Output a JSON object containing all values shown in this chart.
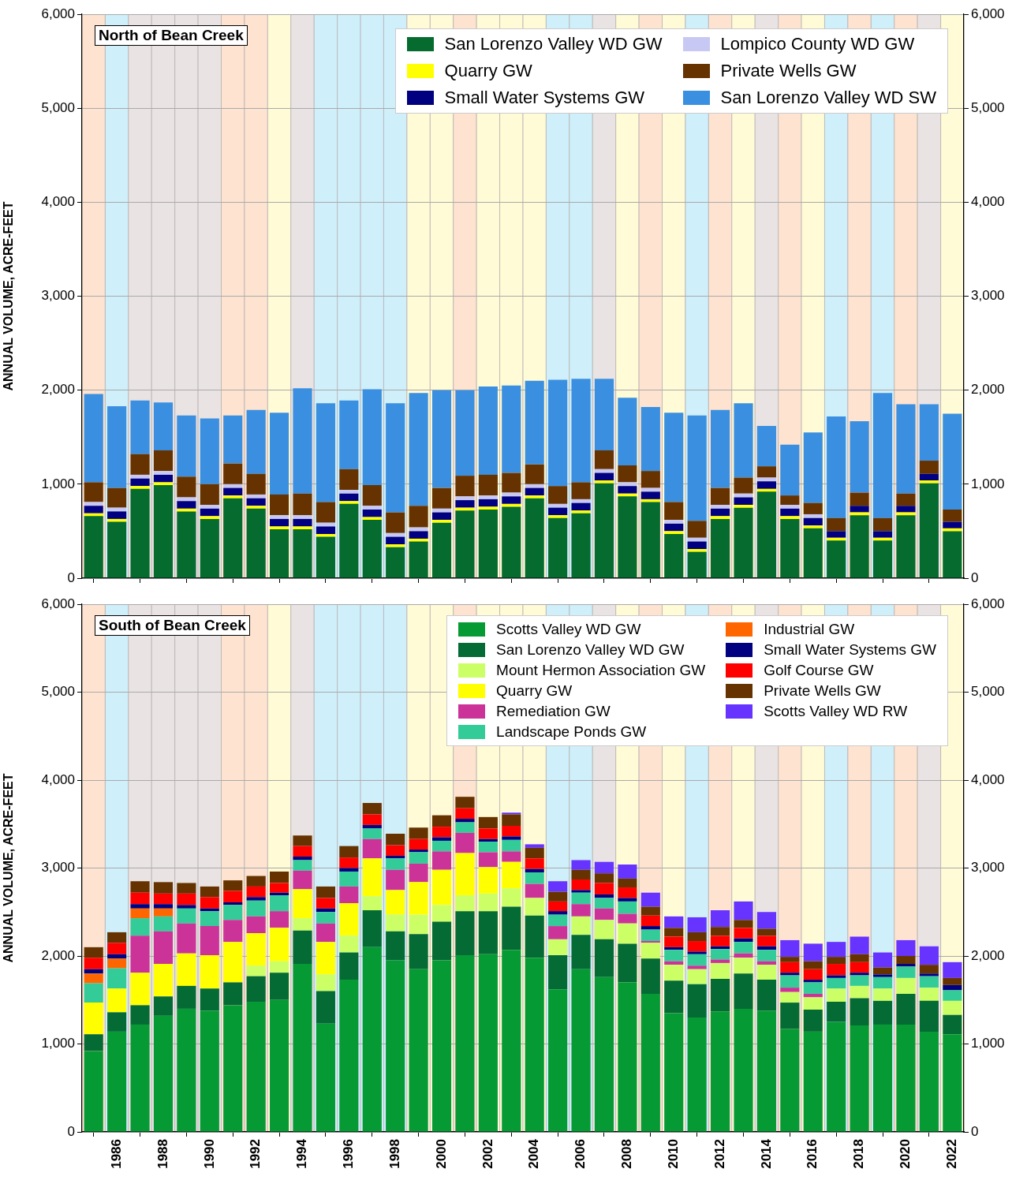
{
  "chart_data": [
    {
      "type": "bar",
      "title": "North of Bean Creek",
      "ylabel": "ANNUAL VOLUME, ACRE-FEET",
      "stacked": true,
      "grid": "y",
      "legend": "top right",
      "tick_labels": "y",
      "x": [
        1985,
        1986,
        1987,
        1988,
        1989,
        1990,
        1991,
        1992,
        1993,
        1994,
        1995,
        1996,
        1997,
        1998,
        1999,
        2000,
        2001,
        2002,
        2003,
        2004,
        2005,
        2006,
        2007,
        2008,
        2009,
        2010,
        2011,
        2012,
        2013,
        2014,
        2015,
        2016,
        2017,
        2018,
        2019,
        2020,
        2021,
        2022
      ],
      "xlim": [
        1984.5,
        2022.5
      ],
      "xticks": [
        1986,
        1988,
        1990,
        1992,
        1994,
        1996,
        1998,
        2000,
        2002,
        2004,
        2006,
        2008,
        2010,
        2012,
        2014,
        2016,
        2018,
        2020,
        2022
      ],
      "ylim": [
        0,
        6000
      ],
      "yticks": [
        0,
        {
          "value": 1000,
          "label": "1,000"
        },
        {
          "value": 2000,
          "label": "2,000"
        },
        {
          "value": 3000,
          "label": "3,000"
        },
        {
          "value": 4000,
          "label": "4,000"
        },
        {
          "value": 5000,
          "label": "5,000"
        },
        {
          "value": 6000,
          "label": "6,000"
        }
      ],
      "y2lim": [
        0,
        6000
      ],
      "y2ticks": [
        0,
        {
          "value": 1000,
          "label": "1,000"
        },
        {
          "value": 2000,
          "label": "2,000"
        },
        {
          "value": 3000,
          "label": "3,000"
        },
        {
          "value": 4000,
          "label": "4,000"
        },
        {
          "value": 5000,
          "label": "5,000"
        },
        {
          "value": 6000,
          "label": "6,000"
        }
      ],
      "series": [
        {
          "name": "San Lorenzo Valley WD GW",
          "color": "#056b2f",
          "values": [
            660,
            600,
            950,
            990,
            710,
            630,
            850,
            740,
            520,
            520,
            440,
            790,
            620,
            330,
            390,
            590,
            720,
            730,
            760,
            850,
            640,
            690,
            1010,
            870,
            810,
            470,
            280,
            630,
            750,
            920,
            630,
            530,
            400,
            670,
            400,
            670,
            1010,
            500
          ]
        },
        {
          "name": "Quarry GW",
          "color": "#ffff00",
          "values": [
            30,
            30,
            30,
            30,
            30,
            30,
            30,
            30,
            30,
            30,
            30,
            30,
            30,
            30,
            30,
            30,
            30,
            30,
            30,
            30,
            30,
            30,
            30,
            30,
            30,
            30,
            30,
            30,
            30,
            30,
            30,
            30,
            30,
            30,
            30,
            30,
            30,
            30
          ]
        },
        {
          "name": "Small Water Systems GW",
          "color": "#000080",
          "values": [
            80,
            80,
            80,
            80,
            80,
            80,
            80,
            80,
            80,
            80,
            80,
            80,
            80,
            80,
            80,
            80,
            80,
            80,
            80,
            80,
            80,
            80,
            80,
            80,
            80,
            80,
            80,
            80,
            80,
            80,
            80,
            80,
            70,
            70,
            70,
            70,
            70,
            70
          ]
        },
        {
          "name": "Lompico County WD GW",
          "color": "#c8c8f5",
          "values": [
            40,
            40,
            40,
            40,
            40,
            40,
            40,
            40,
            40,
            40,
            40,
            40,
            40,
            40,
            40,
            40,
            40,
            40,
            40,
            40,
            40,
            40,
            40,
            40,
            40,
            40,
            40,
            40,
            40,
            40,
            40,
            40,
            null,
            null,
            null,
            null,
            null,
            null
          ]
        },
        {
          "name": "Private Wells GW",
          "color": "#663300",
          "values": [
            210,
            210,
            220,
            220,
            220,
            220,
            220,
            220,
            220,
            230,
            220,
            220,
            220,
            220,
            230,
            220,
            220,
            220,
            210,
            210,
            190,
            180,
            200,
            180,
            180,
            190,
            180,
            180,
            170,
            120,
            100,
            120,
            140,
            140,
            140,
            130,
            140,
            130
          ]
        },
        {
          "name": "San Lorenzo Valley WD SW",
          "color": "#3a8fe0",
          "values": [
            940,
            870,
            570,
            510,
            650,
            700,
            510,
            680,
            870,
            1120,
            1050,
            730,
            1020,
            1160,
            1200,
            1040,
            910,
            940,
            930,
            890,
            1130,
            1100,
            760,
            720,
            680,
            950,
            1120,
            830,
            790,
            430,
            540,
            750,
            1080,
            760,
            1330,
            950,
            600,
            1020
          ]
        }
      ],
      "bands": [
        {
          "axis": "x",
          "from": 1984.5,
          "to": 1985.5,
          "color": "#fde3d0"
        },
        {
          "axis": "x",
          "from": 1985.5,
          "to": 1986.5,
          "color": "#cfeffa"
        },
        {
          "axis": "x",
          "from": 1986.5,
          "to": 1987.5,
          "color": "#e9e3e3"
        },
        {
          "axis": "x",
          "from": 1987.5,
          "to": 1988.5,
          "color": "#e9e3e3"
        },
        {
          "axis": "x",
          "from": 1988.5,
          "to": 1989.5,
          "color": "#e9e3e3"
        },
        {
          "axis": "x",
          "from": 1989.5,
          "to": 1990.5,
          "color": "#e9e3e3"
        },
        {
          "axis": "x",
          "from": 1990.5,
          "to": 1991.5,
          "color": "#fde3d0"
        },
        {
          "axis": "x",
          "from": 1991.5,
          "to": 1992.5,
          "color": "#fde3d0"
        },
        {
          "axis": "x",
          "from": 1992.5,
          "to": 1993.5,
          "color": "#fefbd6"
        },
        {
          "axis": "x",
          "from": 1993.5,
          "to": 1994.5,
          "color": "#e9e3e3"
        },
        {
          "axis": "x",
          "from": 1994.5,
          "to": 1995.5,
          "color": "#cfeffa"
        },
        {
          "axis": "x",
          "from": 1995.5,
          "to": 1996.5,
          "color": "#cfeffa"
        },
        {
          "axis": "x",
          "from": 1996.5,
          "to": 1997.5,
          "color": "#cfeffa"
        },
        {
          "axis": "x",
          "from": 1997.5,
          "to": 1998.5,
          "color": "#cfeffa"
        },
        {
          "axis": "x",
          "from": 1998.5,
          "to": 1999.5,
          "color": "#fefbd6"
        },
        {
          "axis": "x",
          "from": 1999.5,
          "to": 2000.5,
          "color": "#fefbd6"
        },
        {
          "axis": "x",
          "from": 2000.5,
          "to": 2001.5,
          "color": "#fde3d0"
        },
        {
          "axis": "x",
          "from": 2001.5,
          "to": 2002.5,
          "color": "#fefbd6"
        },
        {
          "axis": "x",
          "from": 2002.5,
          "to": 2003.5,
          "color": "#fefbd6"
        },
        {
          "axis": "x",
          "from": 2003.5,
          "to": 2004.5,
          "color": "#fefbd6"
        },
        {
          "axis": "x",
          "from": 2004.5,
          "to": 2005.5,
          "color": "#cfeffa"
        },
        {
          "axis": "x",
          "from": 2005.5,
          "to": 2006.5,
          "color": "#cfeffa"
        },
        {
          "axis": "x",
          "from": 2006.5,
          "to": 2007.5,
          "color": "#e9e3e3"
        },
        {
          "axis": "x",
          "from": 2007.5,
          "to": 2008.5,
          "color": "#fefbd6"
        },
        {
          "axis": "x",
          "from": 2008.5,
          "to": 2009.5,
          "color": "#fde3d0"
        },
        {
          "axis": "x",
          "from": 2009.5,
          "to": 2010.5,
          "color": "#fefbd6"
        },
        {
          "axis": "x",
          "from": 2010.5,
          "to": 2011.5,
          "color": "#cfeffa"
        },
        {
          "axis": "x",
          "from": 2011.5,
          "to": 2012.5,
          "color": "#fde3d0"
        },
        {
          "axis": "x",
          "from": 2012.5,
          "to": 2013.5,
          "color": "#fefbd6"
        },
        {
          "axis": "x",
          "from": 2013.5,
          "to": 2014.5,
          "color": "#e9e3e3"
        },
        {
          "axis": "x",
          "from": 2014.5,
          "to": 2015.5,
          "color": "#fde3d0"
        },
        {
          "axis": "x",
          "from": 2015.5,
          "to": 2016.5,
          "color": "#fefbd6"
        },
        {
          "axis": "x",
          "from": 2016.5,
          "to": 2017.5,
          "color": "#cfeffa"
        },
        {
          "axis": "x",
          "from": 2017.5,
          "to": 2018.5,
          "color": "#fde3d0"
        },
        {
          "axis": "x",
          "from": 2018.5,
          "to": 2019.5,
          "color": "#cfeffa"
        },
        {
          "axis": "x",
          "from": 2019.5,
          "to": 2020.5,
          "color": "#fde3d0"
        },
        {
          "axis": "x",
          "from": 2020.5,
          "to": 2021.5,
          "color": "#e9e3e3"
        },
        {
          "axis": "x",
          "from": 2021.5,
          "to": 2022.5,
          "color": "#fefbd6"
        }
      ]
    },
    {
      "type": "bar",
      "title": "South of Bean Creek",
      "ylabel": "ANNUAL VOLUME, ACRE-FEET",
      "stacked": true,
      "grid": "y",
      "legend": "top right",
      "x": [
        1985,
        1986,
        1987,
        1988,
        1989,
        1990,
        1991,
        1992,
        1993,
        1994,
        1995,
        1996,
        1997,
        1998,
        1999,
        2000,
        2001,
        2002,
        2003,
        2004,
        2005,
        2006,
        2007,
        2008,
        2009,
        2010,
        2011,
        2012,
        2013,
        2014,
        2015,
        2016,
        2017,
        2018,
        2019,
        2020,
        2021,
        2022
      ],
      "xlim": [
        1984.5,
        2022.5
      ],
      "xticks": [
        1986,
        1988,
        1990,
        1992,
        1994,
        1996,
        1998,
        2000,
        2002,
        2004,
        2006,
        2008,
        2010,
        2012,
        2014,
        2016,
        2018,
        2020,
        2022
      ],
      "ylim": [
        0,
        6000
      ],
      "yticks": [
        0,
        {
          "value": 1000,
          "label": "1,000"
        },
        {
          "value": 2000,
          "label": "2,000"
        },
        {
          "value": 3000,
          "label": "3,000"
        },
        {
          "value": 4000,
          "label": "4,000"
        },
        {
          "value": 5000,
          "label": "5,000"
        },
        {
          "value": 6000,
          "label": "6,000"
        }
      ],
      "y2lim": [
        0,
        6000
      ],
      "y2ticks": [
        0,
        {
          "value": 1000,
          "label": "1,000"
        },
        {
          "value": 2000,
          "label": "2,000"
        },
        {
          "value": 3000,
          "label": "3,000"
        },
        {
          "value": 4000,
          "label": "4,000"
        },
        {
          "value": 5000,
          "label": "5,000"
        },
        {
          "value": 6000,
          "label": "6,000"
        }
      ],
      "series": [
        {
          "name": "Scotts Valley WD GW",
          "color": "#069a35",
          "values": [
            920,
            1140,
            1220,
            1320,
            1400,
            1380,
            1440,
            1480,
            1500,
            1910,
            1230,
            1730,
            2100,
            1950,
            1850,
            1950,
            2010,
            2020,
            2070,
            1980,
            1620,
            1850,
            1760,
            1700,
            1570,
            1350,
            1300,
            1370,
            1400,
            1380,
            1170,
            1140,
            1250,
            1210,
            1220,
            1220,
            1140,
            1110
          ]
        },
        {
          "name": "San Lorenzo Valley WD GW",
          "color": "#056b35",
          "values": [
            190,
            220,
            220,
            220,
            260,
            250,
            260,
            290,
            310,
            380,
            370,
            310,
            420,
            330,
            400,
            440,
            500,
            490,
            490,
            480,
            390,
            390,
            430,
            440,
            400,
            370,
            380,
            370,
            400,
            350,
            300,
            250,
            230,
            310,
            270,
            350,
            350,
            220
          ]
        },
        {
          "name": "Mount Hermon Association GW",
          "color": "#ccff66",
          "values": [
            null,
            null,
            null,
            null,
            null,
            null,
            null,
            120,
            130,
            140,
            190,
            190,
            160,
            190,
            220,
            190,
            180,
            200,
            210,
            200,
            180,
            210,
            220,
            230,
            180,
            180,
            170,
            180,
            180,
            170,
            120,
            140,
            150,
            140,
            140,
            180,
            150,
            160
          ]
        },
        {
          "name": "Quarry GW",
          "color": "#ffff00",
          "values": [
            360,
            270,
            370,
            370,
            370,
            380,
            460,
            370,
            380,
            330,
            370,
            370,
            430,
            280,
            370,
            400,
            480,
            300,
            300,
            null,
            null,
            null,
            null,
            null,
            null,
            null,
            null,
            null,
            null,
            null,
            null,
            null,
            null,
            null,
            null,
            null,
            null,
            null
          ]
        },
        {
          "name": "Remediation GW",
          "color": "#cc3399",
          "values": [
            null,
            null,
            420,
            370,
            340,
            330,
            250,
            190,
            190,
            210,
            210,
            190,
            220,
            230,
            210,
            210,
            230,
            170,
            120,
            160,
            150,
            140,
            130,
            110,
            20,
            40,
            40,
            40,
            50,
            40,
            50,
            40,
            null,
            null,
            null,
            null,
            null,
            null
          ]
        },
        {
          "name": "Landscape Ponds GW",
          "color": "#33cc99",
          "values": [
            220,
            230,
            200,
            170,
            170,
            170,
            170,
            180,
            180,
            120,
            130,
            170,
            120,
            130,
            130,
            120,
            120,
            120,
            130,
            130,
            130,
            130,
            120,
            140,
            130,
            130,
            130,
            120,
            130,
            130,
            140,
            130,
            120,
            120,
            130,
            130,
            130,
            120
          ]
        },
        {
          "name": "Industrial GW",
          "color": "#ff6600",
          "values": [
            110,
            110,
            110,
            90,
            null,
            null,
            null,
            null,
            null,
            null,
            null,
            null,
            null,
            null,
            null,
            null,
            null,
            null,
            null,
            null,
            null,
            null,
            null,
            null,
            null,
            null,
            null,
            null,
            null,
            null,
            null,
            null,
            null,
            null,
            null,
            null,
            null,
            null
          ]
        },
        {
          "name": "Small Water Systems GW",
          "color": "#000080",
          "values": [
            50,
            50,
            50,
            50,
            40,
            30,
            30,
            40,
            30,
            40,
            40,
            40,
            40,
            30,
            30,
            40,
            40,
            30,
            40,
            40,
            40,
            30,
            40,
            40,
            40,
            30,
            30,
            30,
            40,
            40,
            30,
            30,
            30,
            30,
            30,
            30,
            30,
            60
          ]
        },
        {
          "name": "Golf Course GW",
          "color": "#ff0000",
          "values": [
            130,
            130,
            130,
            120,
            130,
            130,
            130,
            120,
            110,
            120,
            120,
            120,
            120,
            120,
            120,
            120,
            120,
            120,
            120,
            120,
            110,
            120,
            130,
            120,
            120,
            120,
            120,
            120,
            120,
            120,
            120,
            120,
            130,
            120,
            null,
            null,
            null,
            null
          ]
        },
        {
          "name": "Private Wells GW",
          "color": "#663300",
          "values": [
            120,
            120,
            130,
            130,
            120,
            120,
            120,
            120,
            130,
            120,
            130,
            130,
            130,
            130,
            130,
            130,
            130,
            130,
            130,
            120,
            110,
            110,
            110,
            100,
            100,
            100,
            100,
            100,
            90,
            80,
            60,
            90,
            80,
            90,
            80,
            90,
            100,
            80
          ]
        },
        {
          "name": "Scotts Valley WD RW",
          "color": "#6633ff",
          "values": [
            null,
            null,
            null,
            null,
            null,
            null,
            null,
            null,
            null,
            null,
            null,
            null,
            null,
            null,
            null,
            null,
            null,
            null,
            20,
            40,
            120,
            110,
            130,
            160,
            160,
            130,
            170,
            190,
            210,
            190,
            190,
            200,
            170,
            200,
            170,
            180,
            210,
            180
          ]
        }
      ],
      "bands": [
        {
          "axis": "x",
          "from": 1984.5,
          "to": 1985.5,
          "color": "#fde3d0"
        },
        {
          "axis": "x",
          "from": 1985.5,
          "to": 1986.5,
          "color": "#cfeffa"
        },
        {
          "axis": "x",
          "from": 1986.5,
          "to": 1987.5,
          "color": "#e9e3e3"
        },
        {
          "axis": "x",
          "from": 1987.5,
          "to": 1988.5,
          "color": "#e9e3e3"
        },
        {
          "axis": "x",
          "from": 1988.5,
          "to": 1989.5,
          "color": "#e9e3e3"
        },
        {
          "axis": "x",
          "from": 1989.5,
          "to": 1990.5,
          "color": "#e9e3e3"
        },
        {
          "axis": "x",
          "from": 1990.5,
          "to": 1991.5,
          "color": "#fde3d0"
        },
        {
          "axis": "x",
          "from": 1991.5,
          "to": 1992.5,
          "color": "#fde3d0"
        },
        {
          "axis": "x",
          "from": 1992.5,
          "to": 1993.5,
          "color": "#fefbd6"
        },
        {
          "axis": "x",
          "from": 1993.5,
          "to": 1994.5,
          "color": "#e9e3e3"
        },
        {
          "axis": "x",
          "from": 1994.5,
          "to": 1995.5,
          "color": "#cfeffa"
        },
        {
          "axis": "x",
          "from": 1995.5,
          "to": 1996.5,
          "color": "#cfeffa"
        },
        {
          "axis": "x",
          "from": 1996.5,
          "to": 1997.5,
          "color": "#cfeffa"
        },
        {
          "axis": "x",
          "from": 1997.5,
          "to": 1998.5,
          "color": "#cfeffa"
        },
        {
          "axis": "x",
          "from": 1998.5,
          "to": 1999.5,
          "color": "#fefbd6"
        },
        {
          "axis": "x",
          "from": 1999.5,
          "to": 2000.5,
          "color": "#fefbd6"
        },
        {
          "axis": "x",
          "from": 2000.5,
          "to": 2001.5,
          "color": "#fde3d0"
        },
        {
          "axis": "x",
          "from": 2001.5,
          "to": 2002.5,
          "color": "#fefbd6"
        },
        {
          "axis": "x",
          "from": 2002.5,
          "to": 2003.5,
          "color": "#fefbd6"
        },
        {
          "axis": "x",
          "from": 2003.5,
          "to": 2004.5,
          "color": "#fefbd6"
        },
        {
          "axis": "x",
          "from": 2004.5,
          "to": 2005.5,
          "color": "#cfeffa"
        },
        {
          "axis": "x",
          "from": 2005.5,
          "to": 2006.5,
          "color": "#cfeffa"
        },
        {
          "axis": "x",
          "from": 2006.5,
          "to": 2007.5,
          "color": "#e9e3e3"
        },
        {
          "axis": "x",
          "from": 2007.5,
          "to": 2008.5,
          "color": "#fefbd6"
        },
        {
          "axis": "x",
          "from": 2008.5,
          "to": 2009.5,
          "color": "#fde3d0"
        },
        {
          "axis": "x",
          "from": 2009.5,
          "to": 2010.5,
          "color": "#fefbd6"
        },
        {
          "axis": "x",
          "from": 2010.5,
          "to": 2011.5,
          "color": "#cfeffa"
        },
        {
          "axis": "x",
          "from": 2011.5,
          "to": 2012.5,
          "color": "#fde3d0"
        },
        {
          "axis": "x",
          "from": 2012.5,
          "to": 2013.5,
          "color": "#fefbd6"
        },
        {
          "axis": "x",
          "from": 2013.5,
          "to": 2014.5,
          "color": "#e9e3e3"
        },
        {
          "axis": "x",
          "from": 2014.5,
          "to": 2015.5,
          "color": "#fde3d0"
        },
        {
          "axis": "x",
          "from": 2015.5,
          "to": 2016.5,
          "color": "#fefbd6"
        },
        {
          "axis": "x",
          "from": 2016.5,
          "to": 2017.5,
          "color": "#cfeffa"
        },
        {
          "axis": "x",
          "from": 2017.5,
          "to": 2018.5,
          "color": "#fde3d0"
        },
        {
          "axis": "x",
          "from": 2018.5,
          "to": 2019.5,
          "color": "#cfeffa"
        },
        {
          "axis": "x",
          "from": 2019.5,
          "to": 2020.5,
          "color": "#fde3d0"
        },
        {
          "axis": "x",
          "from": 2020.5,
          "to": 2021.5,
          "color": "#e9e3e3"
        },
        {
          "axis": "x",
          "from": 2021.5,
          "to": 2022.5,
          "color": "#fefbd6"
        }
      ]
    }
  ]
}
